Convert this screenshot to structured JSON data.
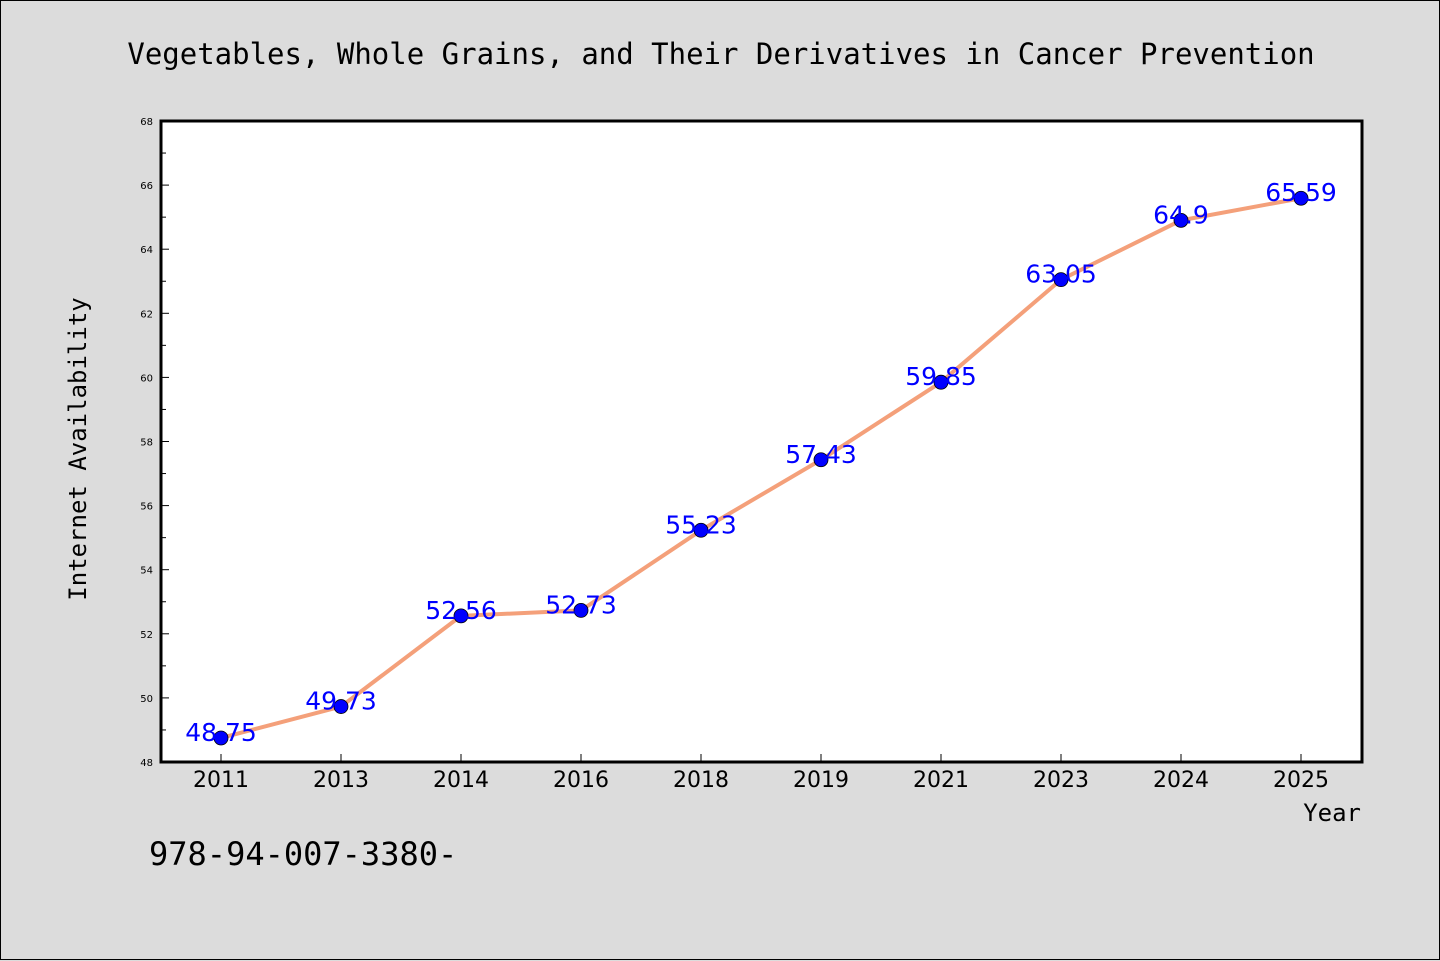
{
  "chart_data": {
    "type": "line",
    "title": "Vegetables, Whole Grains, and Their Derivatives in Cancer Prevention",
    "xlabel": "Year",
    "ylabel": "Internet Availability",
    "categories": [
      "2011",
      "2013",
      "2014",
      "2016",
      "2018",
      "2019",
      "2021",
      "2023",
      "2024",
      "2025"
    ],
    "values": [
      48.75,
      49.73,
      52.56,
      52.73,
      55.23,
      57.43,
      59.85,
      63.05,
      64.9,
      65.59
    ],
    "data_labels": [
      "48.75",
      "49.73",
      "52.56",
      "52.73",
      "55.23",
      "57.43",
      "59.85",
      "63.05",
      "64.9",
      "65.59"
    ],
    "ylim": [
      48,
      68
    ],
    "yticks": [
      48,
      50,
      52,
      54,
      56,
      58,
      60,
      62,
      64,
      66,
      68
    ],
    "grid": false,
    "legend": "none",
    "line_color": "#f4a07a",
    "marker_color": "#0000ff"
  },
  "annotation": {
    "isbn": "978-94-007-3380-"
  }
}
